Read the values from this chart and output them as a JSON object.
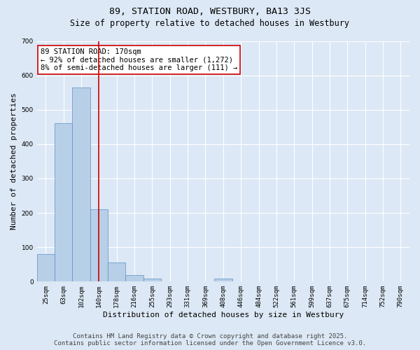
{
  "title_line1": "89, STATION ROAD, WESTBURY, BA13 3JS",
  "title_line2": "Size of property relative to detached houses in Westbury",
  "xlabel": "Distribution of detached houses by size in Westbury",
  "ylabel": "Number of detached properties",
  "categories": [
    "25sqm",
    "63sqm",
    "102sqm",
    "140sqm",
    "178sqm",
    "216sqm",
    "255sqm",
    "293sqm",
    "331sqm",
    "369sqm",
    "408sqm",
    "446sqm",
    "484sqm",
    "522sqm",
    "561sqm",
    "599sqm",
    "637sqm",
    "675sqm",
    "714sqm",
    "752sqm",
    "790sqm"
  ],
  "values": [
    80,
    460,
    565,
    210,
    55,
    18,
    8,
    0,
    0,
    0,
    8,
    0,
    0,
    0,
    0,
    0,
    0,
    0,
    0,
    0,
    0
  ],
  "bar_color": "#b8cfe8",
  "bar_edge_color": "#5b8fc4",
  "vline_x": 3,
  "vline_color": "#cc0000",
  "annotation_text": "89 STATION ROAD: 170sqm\n← 92% of detached houses are smaller (1,272)\n8% of semi-detached houses are larger (111) →",
  "annotation_box_color": "white",
  "annotation_box_edge_color": "#cc0000",
  "ylim": [
    0,
    700
  ],
  "yticks": [
    0,
    100,
    200,
    300,
    400,
    500,
    600,
    700
  ],
  "bg_color": "#dce8f5",
  "plot_bg_color": "#dce8f5",
  "grid_color": "white",
  "footer_line1": "Contains HM Land Registry data © Crown copyright and database right 2025.",
  "footer_line2": "Contains public sector information licensed under the Open Government Licence v3.0.",
  "title1_fontsize": 9.5,
  "title2_fontsize": 8.5,
  "annotation_fontsize": 7.5,
  "tick_fontsize": 6.5,
  "xlabel_fontsize": 8,
  "ylabel_fontsize": 8,
  "footer_fontsize": 6.5
}
